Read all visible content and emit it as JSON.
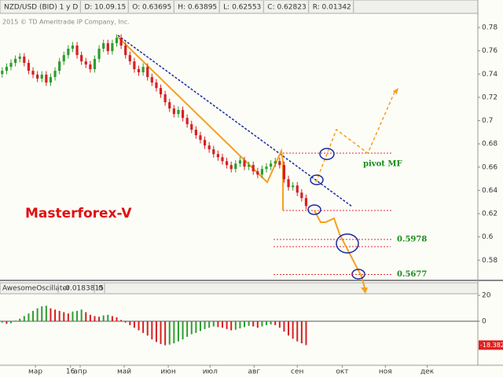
{
  "chart_data": [
    {
      "type": "candlestick",
      "header": [
        "NZD/USD (BID) 1 у D",
        "D: 10.09.15",
        "O: 0.63695",
        "H: 0.63895",
        "L: 0.62553",
        "C: 0.62823",
        "R: 0.01342"
      ],
      "copyright": "2015 © TD Ameritrade IP Company, Inc.",
      "watermark": "Masterforex-V",
      "pivot_label": "pivot MF",
      "levels": [
        {
          "value": 0.5978,
          "label": "0.5978"
        },
        {
          "value": 0.5677,
          "label": "0.5677"
        }
      ],
      "up_color": "#2e9e2e",
      "down_color": "#d62020",
      "open": [
        0.74,
        0.7428,
        0.7462,
        0.7496,
        0.753,
        0.755,
        0.7496,
        0.7428,
        0.7395,
        0.7361,
        0.7395,
        0.7327,
        0.7374,
        0.7428,
        0.7509,
        0.7563,
        0.7618,
        0.7645,
        0.7563,
        0.7509,
        0.7482,
        0.7442,
        0.753,
        0.7618,
        0.7665,
        0.7597,
        0.7665,
        0.7712,
        0.7645,
        0.7563,
        0.7509,
        0.7442,
        0.7415,
        0.7462,
        0.7374,
        0.7327,
        0.728,
        0.7226,
        0.7158,
        0.7104,
        0.7057,
        0.7091,
        0.7023,
        0.6969,
        0.6922,
        0.6874,
        0.6834,
        0.6786,
        0.6753,
        0.6712,
        0.6685,
        0.6651,
        0.6618,
        0.6584,
        0.6631,
        0.6658,
        0.6604,
        0.6618,
        0.6564,
        0.6536,
        0.6584,
        0.6604,
        0.6631,
        0.6651,
        0.6618,
        0.6496,
        0.6428,
        0.6442,
        0.6381,
        0.6334
      ],
      "high": [
        0.7458,
        0.7492,
        0.7526,
        0.756,
        0.758,
        0.758,
        0.7526,
        0.7458,
        0.7425,
        0.7425,
        0.7425,
        0.7404,
        0.7458,
        0.7539,
        0.7593,
        0.7648,
        0.7675,
        0.7675,
        0.7593,
        0.7539,
        0.7512,
        0.756,
        0.7648,
        0.7695,
        0.7695,
        0.7695,
        0.7742,
        0.7742,
        0.7675,
        0.7593,
        0.7539,
        0.7472,
        0.7492,
        0.7492,
        0.7404,
        0.7357,
        0.731,
        0.7256,
        0.7188,
        0.7134,
        0.7121,
        0.7121,
        0.7053,
        0.6999,
        0.6952,
        0.6904,
        0.6864,
        0.6816,
        0.6783,
        0.6742,
        0.6715,
        0.6681,
        0.6648,
        0.6661,
        0.6688,
        0.6688,
        0.6648,
        0.6648,
        0.6594,
        0.6614,
        0.6634,
        0.6661,
        0.6681,
        0.6681,
        0.6648,
        0.6526,
        0.6472,
        0.6472,
        0.6411,
        0.6364
      ],
      "low": [
        0.737,
        0.7398,
        0.7432,
        0.7466,
        0.75,
        0.7466,
        0.7398,
        0.7365,
        0.7331,
        0.7331,
        0.7297,
        0.7297,
        0.7344,
        0.7398,
        0.7479,
        0.7533,
        0.7588,
        0.7533,
        0.7479,
        0.7452,
        0.7412,
        0.7412,
        0.75,
        0.7588,
        0.7567,
        0.7567,
        0.7635,
        0.7615,
        0.7533,
        0.7479,
        0.7412,
        0.7385,
        0.7385,
        0.7344,
        0.7297,
        0.725,
        0.7196,
        0.7128,
        0.7074,
        0.7027,
        0.7027,
        0.6993,
        0.6939,
        0.6892,
        0.6844,
        0.6804,
        0.6756,
        0.6723,
        0.6682,
        0.6655,
        0.6621,
        0.6588,
        0.6554,
        0.6554,
        0.6601,
        0.6574,
        0.6574,
        0.6534,
        0.6506,
        0.6506,
        0.6554,
        0.6574,
        0.6601,
        0.6588,
        0.6466,
        0.6398,
        0.6398,
        0.6351,
        0.6304,
        0.6236
      ],
      "close": [
        0.7428,
        0.7462,
        0.7496,
        0.753,
        0.755,
        0.7496,
        0.7428,
        0.7395,
        0.7361,
        0.7395,
        0.7327,
        0.7374,
        0.7428,
        0.7509,
        0.7563,
        0.7618,
        0.7645,
        0.7563,
        0.7509,
        0.7482,
        0.7442,
        0.753,
        0.7618,
        0.7665,
        0.7597,
        0.7665,
        0.7712,
        0.7645,
        0.7563,
        0.7509,
        0.7442,
        0.7415,
        0.7462,
        0.7374,
        0.7327,
        0.728,
        0.7226,
        0.7158,
        0.7104,
        0.7057,
        0.7091,
        0.7023,
        0.6969,
        0.6922,
        0.6874,
        0.6834,
        0.6786,
        0.6753,
        0.6712,
        0.6685,
        0.6651,
        0.6618,
        0.6584,
        0.6631,
        0.6658,
        0.6604,
        0.6618,
        0.6564,
        0.6536,
        0.6584,
        0.6604,
        0.6631,
        0.6651,
        0.6618,
        0.6496,
        0.6428,
        0.6442,
        0.6381,
        0.6334,
        0.6266
      ],
      "xlim": [
        0,
        108.5
      ],
      "xticks": [
        {
          "value": 8.04,
          "label": "мар"
        },
        {
          "value": 18.2,
          "label": "апр"
        },
        {
          "value": 28.2,
          "label": "май"
        },
        {
          "value": 38.2,
          "label": "июн"
        },
        {
          "value": 47.7,
          "label": "июл"
        },
        {
          "value": 57.7,
          "label": "авг"
        },
        {
          "value": 67.5,
          "label": "сен"
        },
        {
          "value": 77.7,
          "label": "окт"
        },
        {
          "value": 87.5,
          "label": "ноя"
        },
        {
          "value": 97,
          "label": "дек"
        },
        16.0
      ],
      "ylim": [
        0.564,
        0.7915
      ],
      "yticks": [
        0.58,
        0.6,
        0.62,
        0.64,
        0.66,
        0.68,
        0.7,
        0.72,
        0.74,
        0.76,
        0.78
      ]
    },
    {
      "type": "histogram",
      "name": "AwesomeOscillator",
      "header_values": [
        "-0.0183815",
        "0"
      ],
      "up_color": "#2e9e2e",
      "down_color": "#d62020",
      "values": [
        -1,
        -2,
        -1.5,
        0.5,
        2,
        4,
        6,
        8,
        10,
        11.5,
        12,
        10,
        9,
        8,
        7,
        6,
        7.5,
        8,
        9,
        7,
        5,
        4,
        3.5,
        4.5,
        5,
        4,
        3,
        1,
        -1,
        -3,
        -5,
        -7,
        -9,
        -11,
        -14,
        -16,
        -17.5,
        -18.5,
        -18,
        -17,
        -15.5,
        -14,
        -12,
        -10,
        -9,
        -7.5,
        -6,
        -5,
        -4,
        -4.5,
        -5,
        -6,
        -7,
        -6.5,
        -5.5,
        -4.5,
        -3.5,
        -4,
        -5,
        -4,
        -3,
        -2.5,
        -3,
        -5,
        -8,
        -11,
        -13.5,
        -15.5,
        -17,
        -18.382
      ],
      "last_value_label": "-18.382",
      "ylim": [
        -33.9,
        29.7
      ],
      "yticks": [
        0,
        20
      ]
    }
  ]
}
